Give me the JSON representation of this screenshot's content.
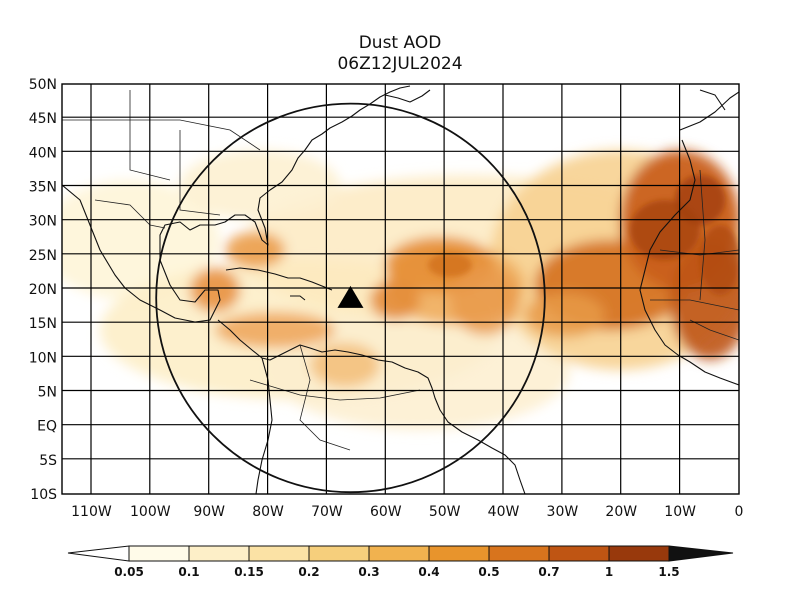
{
  "title": "Dust AOD",
  "subtitle": "06Z12JUL2024",
  "map": {
    "lon_range": [
      -115,
      0
    ],
    "lat_range": [
      -10,
      50
    ],
    "lat_labels": [
      "50N",
      "45N",
      "40N",
      "35N",
      "30N",
      "25N",
      "20N",
      "15N",
      "10N",
      "5N",
      "EQ",
      "5S",
      "10S"
    ],
    "lon_labels": [
      "110W",
      "100W",
      "90W",
      "80W",
      "70W",
      "60W",
      "50W",
      "40W",
      "30W",
      "20W",
      "10W",
      "0"
    ],
    "range_ring": {
      "center_lon": -66,
      "center_lat": 18.7,
      "radius_deg": 30
    },
    "marker": {
      "symbol": "triangle",
      "lon": -66,
      "lat": 18.7
    }
  },
  "colorbar": {
    "labels": [
      "0.05",
      "0.1",
      "0.15",
      "0.2",
      "0.3",
      "0.4",
      "0.5",
      "0.7",
      "1",
      "1.5"
    ],
    "colors": [
      "#fffbe9",
      "#fdefc8",
      "#fbe2a5",
      "#f6cf7c",
      "#f1b24f",
      "#e8942c",
      "#d8741d",
      "#bf5513",
      "#98390c",
      "#6e230a"
    ],
    "over_color": "#111111",
    "under_color": "#ffffff"
  }
}
